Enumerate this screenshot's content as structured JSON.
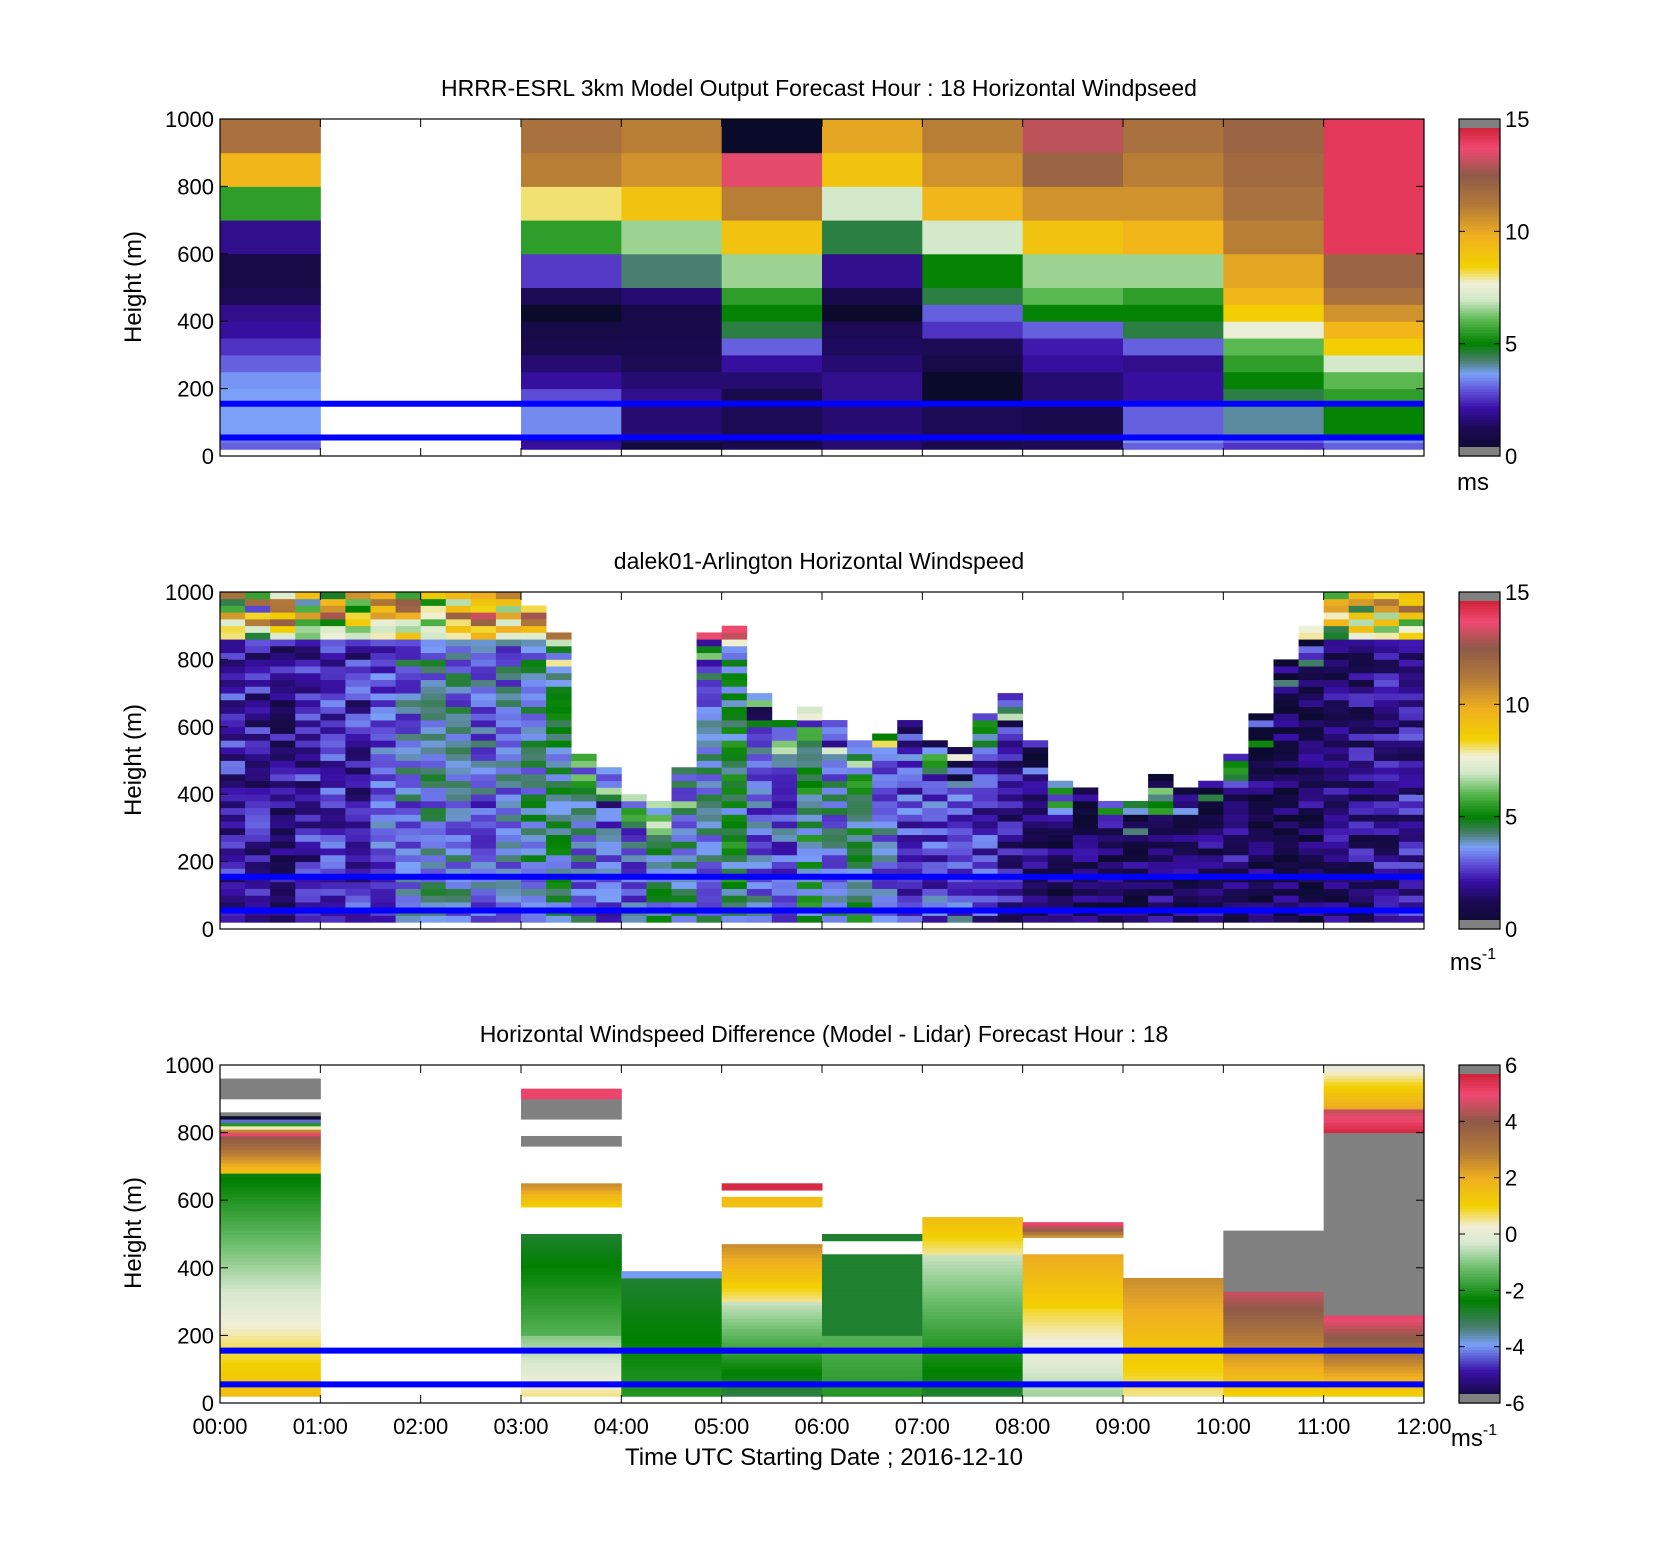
{
  "figure": {
    "xlabel": "Time UTC  Starting Date ; 2016-12-10",
    "ylabel": "Height (m)"
  },
  "colors": {
    "axis": "#000000",
    "missing": "#808080",
    "reference_line": "#0000ff",
    "no_data": "#ffffff"
  },
  "chart_data": [
    {
      "id": "model",
      "type": "heatmap",
      "title": "HRRR-ESRL 3km Model Output   Forecast Hour : 18 Horizontal Windpseed",
      "ylabel": "Height (m)",
      "xlim": [
        0,
        12
      ],
      "ylim": [
        0,
        1000
      ],
      "x_ticks": [
        "00:00",
        "01:00",
        "02:00",
        "03:00",
        "04:00",
        "05:00",
        "06:00",
        "07:00",
        "08:00",
        "09:00",
        "10:00",
        "11:00",
        "12:00"
      ],
      "show_x_tick_labels": false,
      "y_ticks": [
        0,
        200,
        400,
        600,
        800,
        1000
      ],
      "colorbar": {
        "min": 0,
        "max": 15,
        "ticks": [
          0,
          5,
          10,
          15
        ],
        "label": "ms",
        "label_sup": "",
        "scale": "windspeed"
      },
      "reference_lines_m": [
        155,
        55
      ],
      "rows_m": [
        [
          20,
          40
        ],
        [
          40,
          55
        ],
        [
          55,
          155
        ],
        [
          155,
          200
        ],
        [
          200,
          250
        ],
        [
          250,
          300
        ],
        [
          300,
          350
        ],
        [
          350,
          400
        ],
        [
          400,
          450
        ],
        [
          450,
          500
        ],
        [
          500,
          600
        ],
        [
          600,
          700
        ],
        [
          700,
          800
        ],
        [
          800,
          900
        ],
        [
          900,
          1000
        ]
      ],
      "columns": [
        {
          "x": 0,
          "values": [
            3.0,
            3.2,
            3.6,
            3.6,
            3.5,
            3.0,
            2.5,
            2.0,
            1.8,
            1.2,
            0.8,
            1.8,
            5.5,
            9.5,
            11.5
          ]
        },
        {
          "x": 1,
          "values": null
        },
        {
          "x": 2,
          "values": null
        },
        {
          "x": 3,
          "values": [
            2.0,
            1.8,
            3.4,
            2.8,
            2.0,
            1.5,
            1.0,
            0.8,
            -1,
            1.2,
            2.6,
            5.5,
            8.0,
            11.0,
            11.5
          ]
        },
        {
          "x": 4,
          "values": [
            0.5,
            1.2,
            1.5,
            1.8,
            1.5,
            1.2,
            1.0,
            0.9,
            0.9,
            1.5,
            4.2,
            6.5,
            9.0,
            10.5,
            11.0
          ]
        },
        {
          "x": 5,
          "values": [
            1.0,
            1.0,
            1.2,
            1.0,
            1.5,
            2.0,
            3.0,
            4.5,
            5.0,
            5.5,
            6.5,
            9.0,
            11.0,
            13.5,
            -1
          ]
        },
        {
          "x": 6,
          "values": [
            1.5,
            1.5,
            1.5,
            1.8,
            1.8,
            1.5,
            1.3,
            1.2,
            -1,
            1.0,
            1.8,
            4.5,
            7.0,
            9.0,
            10.0
          ]
        },
        {
          "x": 7,
          "values": [
            1.0,
            1.2,
            1.2,
            -1,
            -1,
            0.8,
            1.2,
            2.5,
            3.0,
            4.5,
            5.0,
            7.0,
            9.5,
            10.5,
            11.0
          ]
        },
        {
          "x": 8,
          "values": [
            1.2,
            1.2,
            1.0,
            1.5,
            1.5,
            2.0,
            2.2,
            3.0,
            5.0,
            6.0,
            6.5,
            9.0,
            10.5,
            12.0,
            13.0
          ]
        },
        {
          "x": 9,
          "values": [
            3.0,
            3.5,
            3.0,
            2.0,
            2.0,
            1.8,
            3.0,
            4.5,
            5.0,
            5.5,
            6.5,
            9.5,
            10.5,
            11.0,
            11.5
          ]
        },
        {
          "x": 10,
          "values": [
            2.5,
            3.0,
            4.0,
            4.5,
            5.0,
            5.5,
            6.0,
            7.5,
            8.5,
            9.5,
            10.0,
            11.0,
            11.5,
            11.8,
            12.0
          ]
        },
        {
          "x": 11,
          "values": [
            3.0,
            3.5,
            5.0,
            5.5,
            6.0,
            7.0,
            8.5,
            9.5,
            10.5,
            11.5,
            12.0,
            14.0,
            14.0,
            14.0,
            14.0
          ]
        }
      ]
    },
    {
      "id": "lidar",
      "type": "heatmap",
      "title": "dalek01-Arlington  Horizontal Windspeed",
      "ylabel": "Height (m)",
      "xlim": [
        0,
        12
      ],
      "ylim": [
        0,
        1000
      ],
      "x_ticks": [
        "00:00",
        "01:00",
        "02:00",
        "03:00",
        "04:00",
        "05:00",
        "06:00",
        "07:00",
        "08:00",
        "09:00",
        "10:00",
        "11:00",
        "12:00"
      ],
      "show_x_tick_labels": false,
      "y_ticks": [
        0,
        200,
        400,
        600,
        800,
        1000
      ],
      "colorbar": {
        "min": 0,
        "max": 15,
        "ticks": [
          0,
          5,
          10,
          15
        ],
        "label": "ms",
        "label_sup": "-1",
        "scale": "windspeed"
      },
      "reference_lines_m": [
        155,
        55
      ],
      "time_step_h": 0.25,
      "column_tops_m": [
        1000,
        1000,
        1000,
        1000,
        1000,
        1000,
        1000,
        1000,
        1000,
        1000,
        1000,
        1000,
        960,
        870,
        510,
        470,
        390,
        380,
        470,
        880,
        900,
        700,
        620,
        650,
        620,
        560,
        580,
        610,
        560,
        540,
        640,
        700,
        560,
        440,
        420,
        370,
        370,
        450,
        420,
        440,
        520,
        630,
        800,
        890,
        990,
        1000,
        1000,
        1000
      ],
      "column_means_ms": [
        2.2,
        2.0,
        1.8,
        2.2,
        2.4,
        2.3,
        3.0,
        3.4,
        3.6,
        3.5,
        3.2,
        3.4,
        3.8,
        4.2,
        3.5,
        3.0,
        3.2,
        4.0,
        3.8,
        3.5,
        4.5,
        3.2,
        3.0,
        4.5,
        3.6,
        4.5,
        3.2,
        2.6,
        2.8,
        3.0,
        2.4,
        2.0,
        1.5,
        1.2,
        1.2,
        1.0,
        1.2,
        1.4,
        1.5,
        1.3,
        1.6,
        1.2,
        1.0,
        1.2,
        1.4,
        1.6,
        1.8,
        2.0
      ]
    },
    {
      "id": "difference",
      "type": "heatmap",
      "title": "Horizontal Windspeed Difference (Model - Lidar) Forecast Hour : 18",
      "ylabel": "Height (m)",
      "xlim": [
        0,
        12
      ],
      "ylim": [
        0,
        1000
      ],
      "x_ticks": [
        "00:00",
        "01:00",
        "02:00",
        "03:00",
        "04:00",
        "05:00",
        "06:00",
        "07:00",
        "08:00",
        "09:00",
        "10:00",
        "11:00",
        "12:00"
      ],
      "show_x_tick_labels": true,
      "y_ticks": [
        0,
        200,
        400,
        600,
        800,
        1000
      ],
      "colorbar": {
        "min": -6,
        "max": 6,
        "ticks": [
          -6,
          -4,
          -2,
          0,
          2,
          4,
          6
        ],
        "label": "ms",
        "label_sup": "-1",
        "scale": "difference"
      },
      "reference_lines_m": [
        155,
        55
      ],
      "segments": [
        {
          "x": 0,
          "bottom": 20,
          "top": 680,
          "from": 1.5,
          "to": -2.5
        },
        {
          "x": 0,
          "bottom": 680,
          "top": 790,
          "from": 1.5,
          "to": 4.0
        },
        {
          "x": 0,
          "bottom": 790,
          "top": 860,
          "from": 5.0,
          "to": -9
        },
        {
          "x": 0,
          "bottom": 900,
          "top": 960,
          "from": -9,
          "to": -9
        },
        {
          "x": 3,
          "bottom": 20,
          "top": 200,
          "from": 0.5,
          "to": -1.0
        },
        {
          "x": 3,
          "bottom": 200,
          "top": 500,
          "from": -1.5,
          "to": -2.8
        },
        {
          "x": 3,
          "bottom": 580,
          "top": 650,
          "from": 1.0,
          "to": 2.5
        },
        {
          "x": 3,
          "bottom": 760,
          "top": 790,
          "from": -9,
          "to": -9
        },
        {
          "x": 3,
          "bottom": 840,
          "top": 900,
          "from": -9,
          "to": -9
        },
        {
          "x": 3,
          "bottom": 900,
          "top": 930,
          "from": 5.0,
          "to": 5.0
        },
        {
          "x": 4,
          "bottom": 20,
          "top": 370,
          "from": -2.0,
          "to": -2.8
        },
        {
          "x": 4,
          "bottom": 370,
          "top": 390,
          "from": -4.0,
          "to": -4.0
        },
        {
          "x": 5,
          "bottom": 20,
          "top": 300,
          "from": -3.0,
          "to": -0.5
        },
        {
          "x": 5,
          "bottom": 300,
          "top": 470,
          "from": 0.5,
          "to": 2.5
        },
        {
          "x": 5,
          "bottom": 580,
          "top": 610,
          "from": 1.5,
          "to": 1.5
        },
        {
          "x": 5,
          "bottom": 630,
          "top": 650,
          "from": 5.5,
          "to": 5.5
        },
        {
          "x": 6,
          "bottom": 20,
          "top": 200,
          "from": -2.0,
          "to": -1.5
        },
        {
          "x": 6,
          "bottom": 200,
          "top": 440,
          "from": -2.8,
          "to": -2.8
        },
        {
          "x": 6,
          "bottom": 480,
          "top": 500,
          "from": -2.8,
          "to": -2.8
        },
        {
          "x": 7,
          "bottom": 20,
          "top": 440,
          "from": -2.8,
          "to": -0.5
        },
        {
          "x": 7,
          "bottom": 440,
          "top": 550,
          "from": 0.5,
          "to": 1.5
        },
        {
          "x": 8,
          "bottom": 20,
          "top": 280,
          "from": -0.8,
          "to": 0.8
        },
        {
          "x": 8,
          "bottom": 280,
          "top": 440,
          "from": 1.0,
          "to": 2.0
        },
        {
          "x": 8,
          "bottom": 490,
          "top": 535,
          "from": 2.5,
          "to": 5.0
        },
        {
          "x": 9,
          "bottom": 20,
          "top": 370,
          "from": 0.5,
          "to": 2.5
        },
        {
          "x": 10,
          "bottom": 20,
          "top": 330,
          "from": 1.0,
          "to": 4.5
        },
        {
          "x": 10,
          "bottom": 330,
          "top": 510,
          "from": -9,
          "to": -9
        },
        {
          "x": 11,
          "bottom": 20,
          "top": 260,
          "from": 1.0,
          "to": 5.0
        },
        {
          "x": 11,
          "bottom": 260,
          "top": 800,
          "from": -9,
          "to": -9
        },
        {
          "x": 11,
          "bottom": 800,
          "top": 870,
          "from": 5.5,
          "to": 4.5
        },
        {
          "x": 11,
          "bottom": 870,
          "top": 1000,
          "from": 2.0,
          "to": 0.0
        }
      ]
    }
  ]
}
